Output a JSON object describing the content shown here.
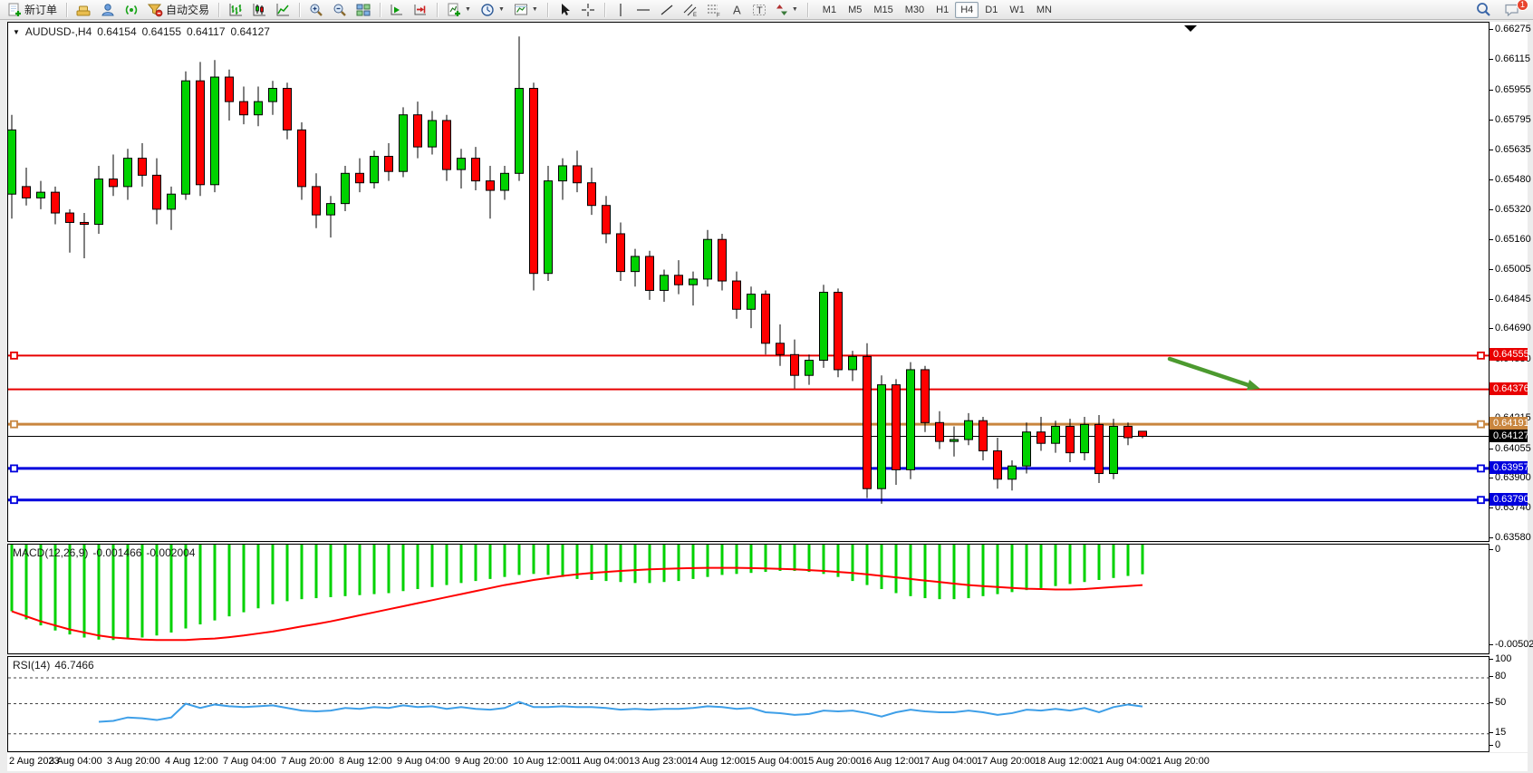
{
  "toolbar": {
    "new_order_label": "新订单",
    "auto_trading_label": "自动交易",
    "timeframes": [
      "M1",
      "M5",
      "M15",
      "M30",
      "H1",
      "H4",
      "D1",
      "W1",
      "MN"
    ],
    "active_timeframe": "H4",
    "notification_count": "1"
  },
  "chart": {
    "title": {
      "symbol": "AUDUSD-,H4",
      "open": "0.64154",
      "high": "0.64155",
      "low": "0.64117",
      "close": "0.64127"
    },
    "price_axis_labels": [
      "0.66275",
      "0.66115",
      "0.65955",
      "0.65795",
      "0.65635",
      "0.65480",
      "0.65320",
      "0.65160",
      "0.65005",
      "0.64845",
      "0.64690",
      "0.64530",
      "0.64215",
      "0.64055",
      "0.63900",
      "0.63740",
      "0.63580"
    ],
    "price_tags": [
      {
        "text": "0.64555",
        "color": "#e80000"
      },
      {
        "text": "0.64376",
        "color": "#e80000"
      },
      {
        "text": "0.64191",
        "color": "#c9863f"
      },
      {
        "text": "0.64127",
        "color": "#000000"
      },
      {
        "text": "0.63957",
        "color": "#0000dd"
      },
      {
        "text": "0.63790",
        "color": "#0000dd"
      }
    ],
    "hlines": [
      {
        "price": 0.64555,
        "color": "#e80000",
        "width": 2,
        "handles": true
      },
      {
        "price": 0.64376,
        "color": "#e80000",
        "width": 2,
        "handles": false
      },
      {
        "price": 0.64191,
        "color": "#c9863f",
        "width": 3,
        "handles": true
      },
      {
        "price": 0.63957,
        "color": "#0000dd",
        "width": 3,
        "handles": true
      },
      {
        "price": 0.6379,
        "color": "#0000dd",
        "width": 3,
        "handles": true
      }
    ],
    "bid_line": {
      "price": 0.64127,
      "color": "#000000"
    },
    "time_axis": [
      "2 Aug 2023",
      "3 Aug 04:00",
      "3 Aug 20:00",
      "4 Aug 12:00",
      "7 Aug 04:00",
      "7 Aug 20:00",
      "8 Aug 12:00",
      "9 Aug 04:00",
      "9 Aug 20:00",
      "10 Aug 12:00",
      "11 Aug 04:00",
      "13 Aug 23:00",
      "14 Aug 12:00",
      "15 Aug 04:00",
      "15 Aug 20:00",
      "16 Aug 12:00",
      "17 Aug 04:00",
      "17 Aug 20:00",
      "18 Aug 12:00",
      "21 Aug 04:00",
      "21 Aug 20:00"
    ],
    "candles": [
      [
        0.6541,
        0.6583,
        0.6528,
        0.6575
      ],
      [
        0.6545,
        0.6555,
        0.6535,
        0.6539
      ],
      [
        0.6539,
        0.6548,
        0.6533,
        0.6542
      ],
      [
        0.6542,
        0.6545,
        0.6525,
        0.6531
      ],
      [
        0.6531,
        0.6533,
        0.651,
        0.6526
      ],
      [
        0.6526,
        0.6531,
        0.6507,
        0.6525
      ],
      [
        0.6525,
        0.6556,
        0.652,
        0.6549
      ],
      [
        0.6549,
        0.6562,
        0.654,
        0.6545
      ],
      [
        0.6545,
        0.6565,
        0.6538,
        0.656
      ],
      [
        0.656,
        0.6568,
        0.6545,
        0.6551
      ],
      [
        0.6551,
        0.656,
        0.6525,
        0.6533
      ],
      [
        0.6533,
        0.6545,
        0.6522,
        0.6541
      ],
      [
        0.6541,
        0.6606,
        0.6538,
        0.6601
      ],
      [
        0.6601,
        0.6611,
        0.654,
        0.6546
      ],
      [
        0.6546,
        0.6612,
        0.6542,
        0.6603
      ],
      [
        0.6603,
        0.6607,
        0.658,
        0.659
      ],
      [
        0.659,
        0.6598,
        0.6578,
        0.6583
      ],
      [
        0.6583,
        0.6598,
        0.6577,
        0.659
      ],
      [
        0.659,
        0.6601,
        0.6583,
        0.6597
      ],
      [
        0.6597,
        0.66,
        0.657,
        0.6575
      ],
      [
        0.6575,
        0.6579,
        0.6538,
        0.6545
      ],
      [
        0.6545,
        0.6552,
        0.6523,
        0.653
      ],
      [
        0.653,
        0.654,
        0.6518,
        0.6536
      ],
      [
        0.6536,
        0.6556,
        0.6532,
        0.6552
      ],
      [
        0.6552,
        0.656,
        0.6542,
        0.6547
      ],
      [
        0.6547,
        0.6564,
        0.6544,
        0.6561
      ],
      [
        0.6561,
        0.6568,
        0.6548,
        0.6553
      ],
      [
        0.6553,
        0.6587,
        0.655,
        0.6583
      ],
      [
        0.6583,
        0.659,
        0.656,
        0.6566
      ],
      [
        0.6566,
        0.6585,
        0.6562,
        0.658
      ],
      [
        0.658,
        0.6583,
        0.6548,
        0.6554
      ],
      [
        0.6554,
        0.6565,
        0.6544,
        0.656
      ],
      [
        0.656,
        0.6566,
        0.6543,
        0.6548
      ],
      [
        0.6548,
        0.6556,
        0.6528,
        0.6543
      ],
      [
        0.6543,
        0.6556,
        0.6538,
        0.6552
      ],
      [
        0.6552,
        0.66245,
        0.6548,
        0.6597
      ],
      [
        0.6597,
        0.66,
        0.649,
        0.6499
      ],
      [
        0.6499,
        0.6556,
        0.6495,
        0.6548
      ],
      [
        0.6548,
        0.656,
        0.6538,
        0.6556
      ],
      [
        0.6556,
        0.6564,
        0.6542,
        0.6547
      ],
      [
        0.6547,
        0.6555,
        0.653,
        0.6535
      ],
      [
        0.6535,
        0.654,
        0.6515,
        0.652
      ],
      [
        0.652,
        0.6526,
        0.6495,
        0.65
      ],
      [
        0.65,
        0.6512,
        0.6492,
        0.6508
      ],
      [
        0.6508,
        0.6511,
        0.6485,
        0.649
      ],
      [
        0.649,
        0.6501,
        0.6484,
        0.6498
      ],
      [
        0.6498,
        0.6506,
        0.6488,
        0.6493
      ],
      [
        0.6493,
        0.65,
        0.6482,
        0.6496
      ],
      [
        0.6496,
        0.6522,
        0.6492,
        0.6517
      ],
      [
        0.6517,
        0.652,
        0.649,
        0.6495
      ],
      [
        0.6495,
        0.65,
        0.6475,
        0.648
      ],
      [
        0.648,
        0.6492,
        0.647,
        0.6488
      ],
      [
        0.6488,
        0.649,
        0.6456,
        0.6462
      ],
      [
        0.6462,
        0.6472,
        0.645,
        0.6456
      ],
      [
        0.6456,
        0.6464,
        0.6438,
        0.6445
      ],
      [
        0.6445,
        0.6456,
        0.644,
        0.6453
      ],
      [
        0.6453,
        0.6493,
        0.6449,
        0.6489
      ],
      [
        0.6489,
        0.6491,
        0.6444,
        0.6448
      ],
      [
        0.6448,
        0.6458,
        0.6442,
        0.6455
      ],
      [
        0.6455,
        0.6462,
        0.638,
        0.6385
      ],
      [
        0.6385,
        0.6445,
        0.6377,
        0.644
      ],
      [
        0.644,
        0.6443,
        0.6387,
        0.6395
      ],
      [
        0.6395,
        0.6452,
        0.639,
        0.6448
      ],
      [
        0.6448,
        0.645,
        0.6415,
        0.642
      ],
      [
        0.642,
        0.6426,
        0.6406,
        0.641
      ],
      [
        0.641,
        0.6418,
        0.6402,
        0.6411
      ],
      [
        0.6411,
        0.6425,
        0.6408,
        0.6421
      ],
      [
        0.6421,
        0.6423,
        0.64,
        0.6405
      ],
      [
        0.6405,
        0.6412,
        0.6385,
        0.639
      ],
      [
        0.639,
        0.64,
        0.6384,
        0.6397
      ],
      [
        0.6397,
        0.642,
        0.6393,
        0.6415
      ],
      [
        0.6415,
        0.6423,
        0.6405,
        0.6409
      ],
      [
        0.6409,
        0.6421,
        0.6404,
        0.6418
      ],
      [
        0.6418,
        0.6422,
        0.6399,
        0.6404
      ],
      [
        0.6404,
        0.6423,
        0.64,
        0.6419
      ],
      [
        0.6419,
        0.6424,
        0.6388,
        0.6393
      ],
      [
        0.6393,
        0.6422,
        0.639,
        0.6418
      ],
      [
        0.6418,
        0.642,
        0.6408,
        0.6412
      ],
      [
        0.64154,
        0.64155,
        0.64117,
        0.64127
      ]
    ],
    "arrow": {
      "color": "#4c9a2f"
    },
    "colors": {
      "bull": "#00d200",
      "bear": "#ff0000",
      "wick": "#000000"
    }
  },
  "macd": {
    "name": "MACD(12,26,9)",
    "value_main": "-0.001466",
    "value_signal": "-0.002004",
    "axis_labels": [
      "0",
      "-0.005025"
    ],
    "histogram": [
      -3.3,
      -3.7,
      -4.0,
      -4.25,
      -4.45,
      -4.6,
      -4.7,
      -4.72,
      -4.68,
      -4.6,
      -4.5,
      -4.35,
      -4.15,
      -3.95,
      -3.75,
      -3.55,
      -3.35,
      -3.15,
      -2.95,
      -2.8,
      -2.7,
      -2.65,
      -2.6,
      -2.55,
      -2.5,
      -2.45,
      -2.4,
      -2.3,
      -2.2,
      -2.1,
      -2.0,
      -1.9,
      -1.8,
      -1.7,
      -1.6,
      -1.5,
      -1.45,
      -1.5,
      -1.6,
      -1.7,
      -1.75,
      -1.8,
      -1.85,
      -1.9,
      -1.9,
      -1.85,
      -1.8,
      -1.7,
      -1.6,
      -1.5,
      -1.45,
      -1.4,
      -1.35,
      -1.3,
      -1.3,
      -1.35,
      -1.45,
      -1.6,
      -1.8,
      -2.0,
      -2.2,
      -2.4,
      -2.55,
      -2.65,
      -2.7,
      -2.7,
      -2.65,
      -2.55,
      -2.45,
      -2.35,
      -2.25,
      -2.15,
      -2.05,
      -1.95,
      -1.85,
      -1.75,
      -1.65,
      -1.55,
      -1.466
    ],
    "signal": [
      -3.3,
      -3.55,
      -3.8,
      -4.0,
      -4.2,
      -4.35,
      -4.5,
      -4.6,
      -4.65,
      -4.7,
      -4.72,
      -4.72,
      -4.72,
      -4.68,
      -4.65,
      -4.58,
      -4.5,
      -4.4,
      -4.3,
      -4.18,
      -4.05,
      -3.93,
      -3.8,
      -3.65,
      -3.5,
      -3.35,
      -3.2,
      -3.05,
      -2.9,
      -2.75,
      -2.6,
      -2.45,
      -2.3,
      -2.15,
      -2.0,
      -1.88,
      -1.75,
      -1.65,
      -1.55,
      -1.47,
      -1.4,
      -1.35,
      -1.3,
      -1.26,
      -1.22,
      -1.2,
      -1.18,
      -1.16,
      -1.15,
      -1.15,
      -1.15,
      -1.16,
      -1.18,
      -1.2,
      -1.22,
      -1.26,
      -1.3,
      -1.35,
      -1.4,
      -1.47,
      -1.55,
      -1.62,
      -1.7,
      -1.78,
      -1.85,
      -1.93,
      -2.0,
      -2.05,
      -2.1,
      -2.14,
      -2.18,
      -2.2,
      -2.22,
      -2.22,
      -2.2,
      -2.15,
      -2.1,
      -2.05,
      -2.004
    ],
    "colors": {
      "histogram": "#00d200",
      "signal": "#ff0000"
    }
  },
  "rsi": {
    "name": "RSI(14)",
    "value": "46.7466",
    "axis_labels": [
      "100",
      "80",
      "50",
      "15",
      "0"
    ],
    "levels": [
      80,
      50,
      15
    ],
    "start_index": 6,
    "points": [
      29,
      30,
      34,
      33,
      31,
      34,
      50,
      45,
      49,
      47,
      46,
      47,
      48,
      45,
      42,
      41,
      42,
      45,
      44,
      46,
      45,
      48,
      46,
      47,
      44,
      46,
      44,
      43,
      45,
      52,
      46,
      46,
      47,
      46,
      46,
      45,
      43,
      44,
      43,
      44,
      44,
      45,
      47,
      46,
      44,
      45,
      40,
      39,
      37,
      38,
      42,
      41,
      42,
      39,
      35,
      40,
      43,
      41,
      40,
      40,
      42,
      40,
      37,
      39,
      43,
      42,
      44,
      42,
      45,
      40,
      46,
      49,
      46.7
    ],
    "color": "#3e9fe8"
  }
}
